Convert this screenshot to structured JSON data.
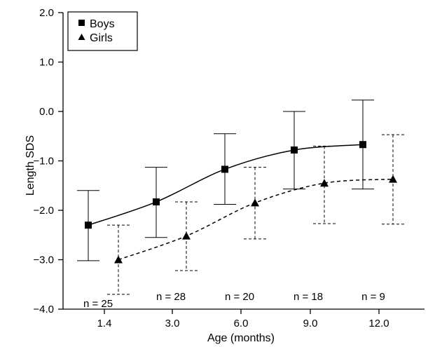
{
  "chart_data": {
    "type": "line",
    "xlabel": "Age (months)",
    "ylabel": "Length SDS",
    "ylim": [
      -4.0,
      2.0
    ],
    "yticks": [
      "2.0",
      "1.0",
      "0.0",
      "−1.0",
      "−2.0",
      "−3.0",
      "−4.0"
    ],
    "categories": [
      "1.4",
      "3.0",
      "6.0",
      "9.0",
      "12.0"
    ],
    "legend_position": "top-left",
    "grid": false,
    "series": [
      {
        "name": "Boys",
        "marker": "square",
        "line_style": "solid",
        "values": [
          -2.3,
          -1.83,
          -1.17,
          -0.78,
          -0.67
        ],
        "error_upper": [
          -1.6,
          -1.13,
          -0.45,
          0.0,
          0.23
        ],
        "error_lower": [
          -3.02,
          -2.55,
          -1.88,
          -1.57,
          -1.57
        ]
      },
      {
        "name": "Girls",
        "marker": "triangle",
        "line_style": "dashed",
        "values": [
          -3.0,
          -2.52,
          -1.85,
          -1.45,
          -1.37
        ],
        "error_upper": [
          -2.3,
          -1.83,
          -1.13,
          -0.7,
          -0.47
        ],
        "error_lower": [
          -3.7,
          -3.22,
          -2.58,
          -2.27,
          -2.28
        ]
      }
    ],
    "annotations": [
      "n = 25",
      "n = 28",
      "n = 20",
      "n = 18",
      "n = 9"
    ]
  }
}
